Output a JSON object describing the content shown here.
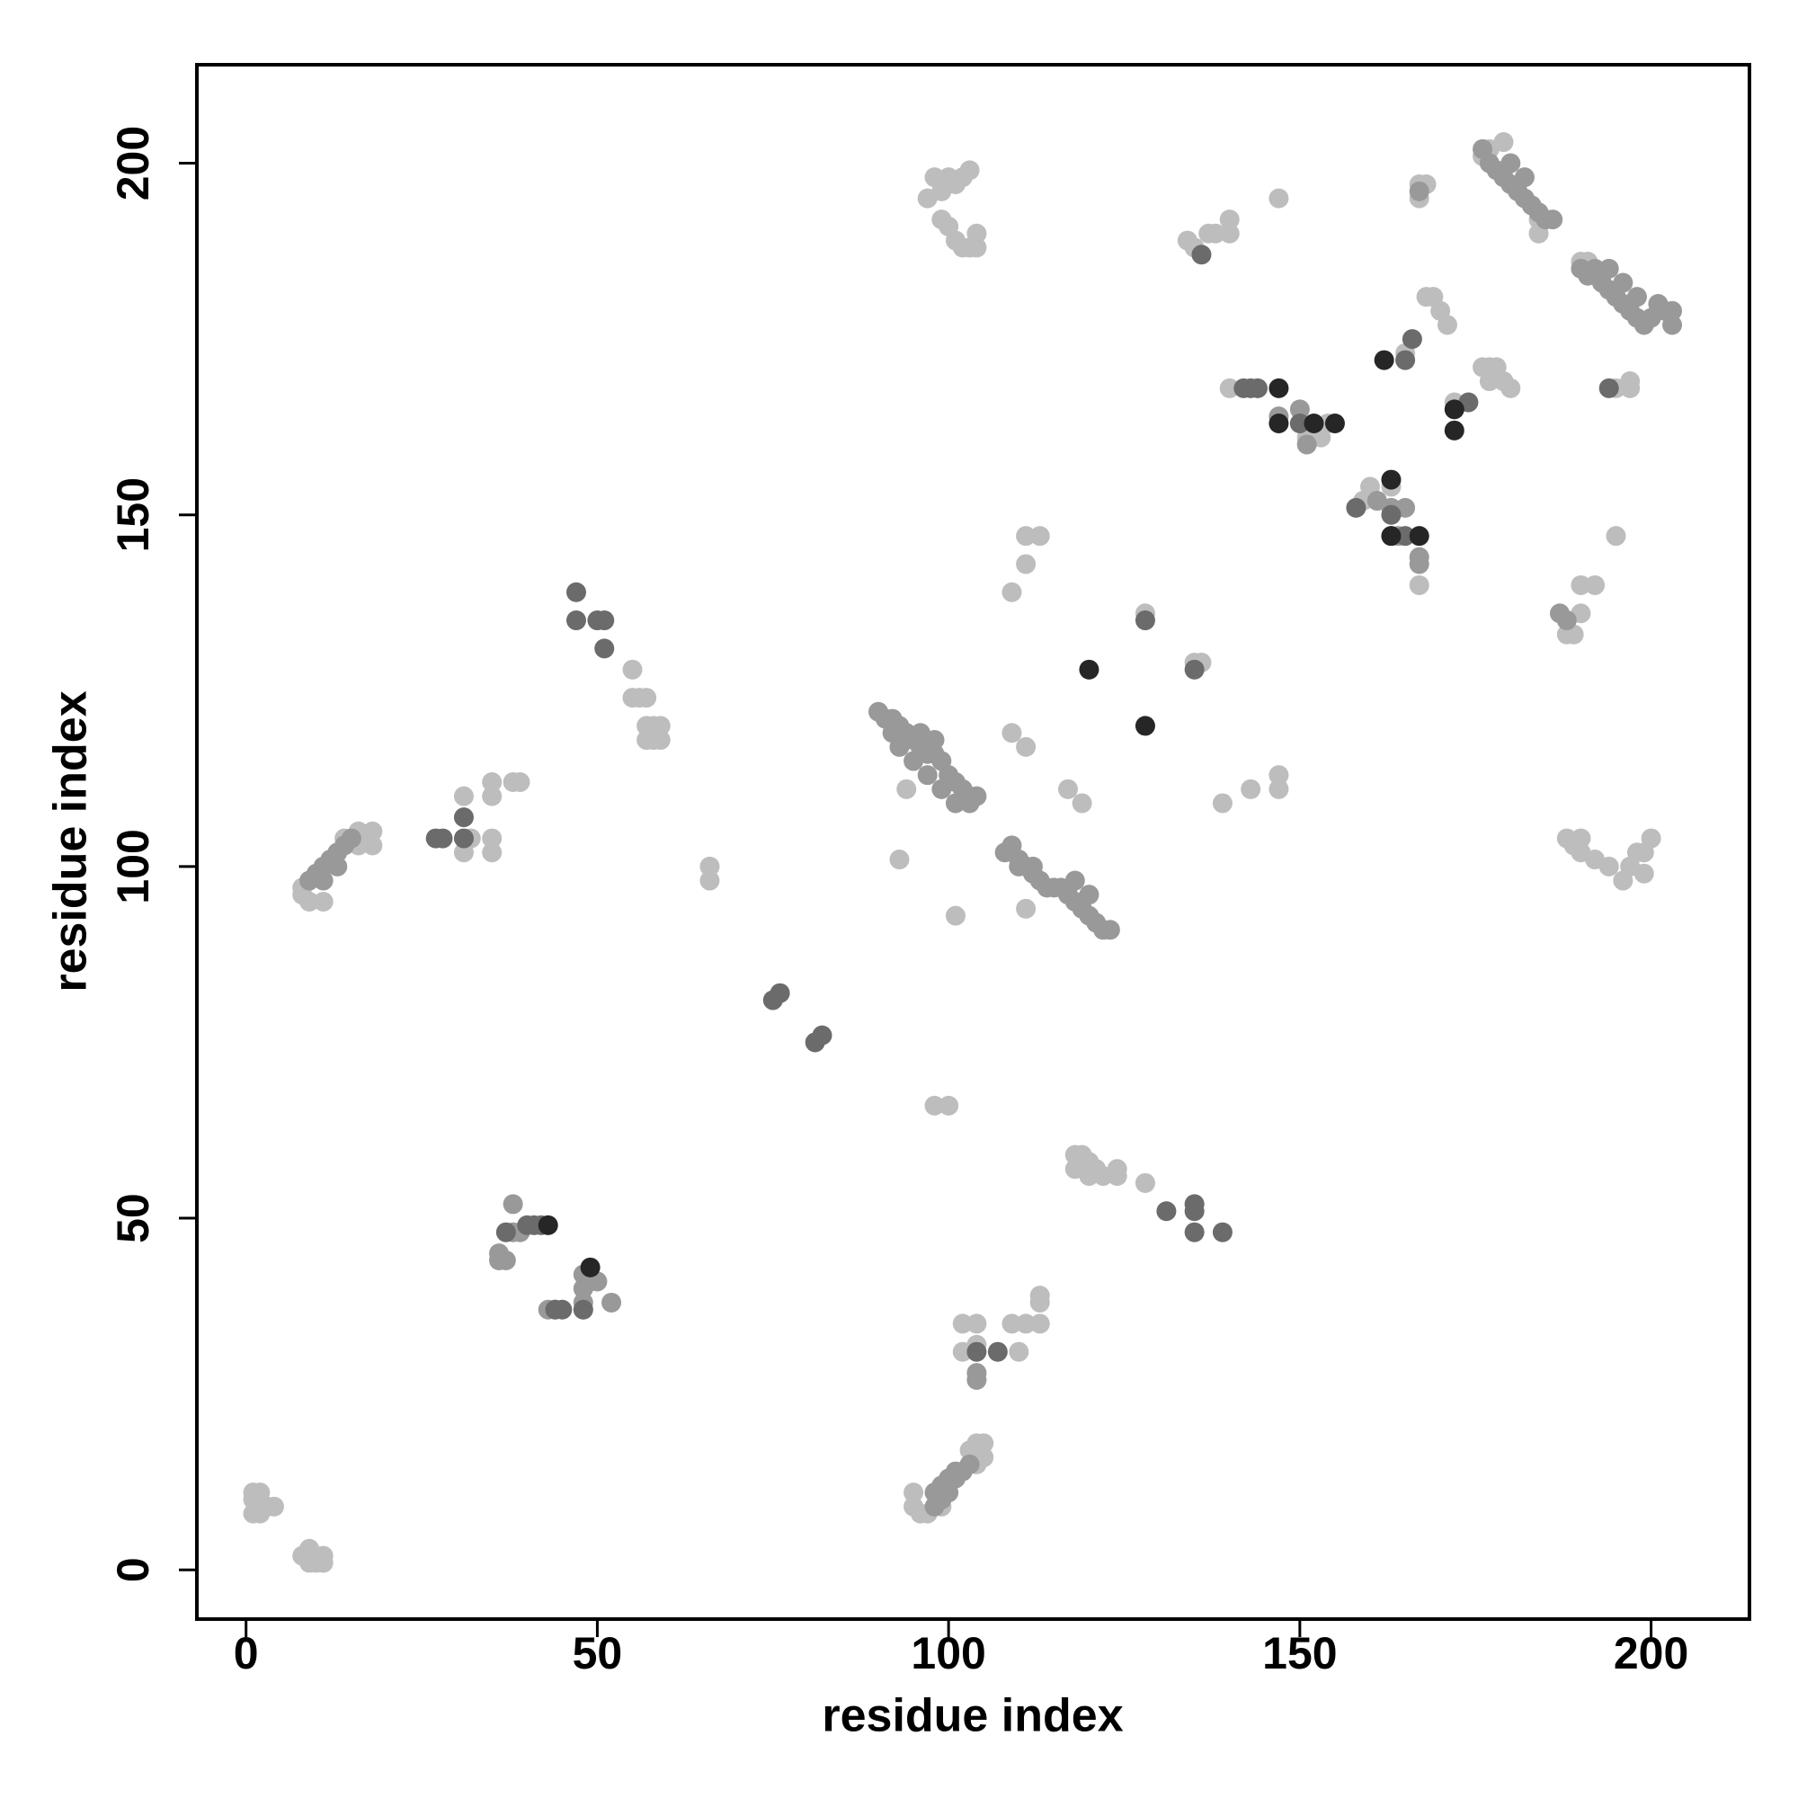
{
  "chart_data": {
    "type": "scatter",
    "x_label": "residue index",
    "y_label": "residue index",
    "xlim": [
      -7,
      214
    ],
    "ylim": [
      -7,
      214
    ],
    "xticks": [
      0,
      50,
      100,
      150,
      200
    ],
    "yticks": [
      0,
      50,
      100,
      150,
      200
    ],
    "grid": false,
    "series": [
      {
        "color": "#bdbdbd",
        "x": [
          1,
          2,
          1,
          2,
          3,
          4,
          1,
          2,
          8,
          9,
          10,
          11,
          10,
          11,
          9,
          8,
          8,
          9,
          11,
          16,
          17,
          18,
          18,
          16,
          14,
          31,
          31,
          35,
          35,
          35,
          35,
          38,
          39,
          32,
          55,
          55,
          56,
          57,
          57,
          58,
          59,
          58,
          57,
          59,
          66,
          66,
          98,
          99,
          100,
          101,
          102,
          103,
          97,
          99,
          100,
          101,
          102,
          103,
          104,
          104,
          109,
          111,
          111,
          113,
          109,
          111,
          117,
          119,
          94,
          93,
          101,
          111,
          98,
          100,
          118,
          119,
          120,
          121,
          124,
          124,
          128,
          118,
          120,
          122,
          102,
          102,
          104,
          104,
          109,
          111,
          110,
          113,
          113,
          113,
          95,
          95,
          96,
          97,
          99,
          103,
          104,
          105,
          105,
          104,
          134,
          135,
          137,
          138,
          140,
          140,
          147,
          128,
          135,
          136,
          139,
          143,
          147,
          147,
          140,
          150,
          151,
          153,
          154,
          159,
          160,
          163,
          167,
          168,
          167,
          168,
          169,
          170,
          171,
          167,
          165,
          172,
          176,
          177,
          178,
          179,
          180,
          177,
          176,
          177,
          179,
          184,
          184,
          188,
          189,
          190,
          190,
          192,
          194,
          196,
          197,
          198,
          199,
          200,
          199,
          188,
          189,
          190,
          190,
          192,
          195,
          195,
          197,
          197,
          190,
          191
        ],
        "y": [
          11,
          11,
          10,
          9,
          9,
          9,
          8,
          8,
          2,
          1,
          1,
          1,
          2,
          2,
          3,
          97,
          96,
          95,
          95,
          103,
          104,
          105,
          103,
          105,
          104,
          110,
          102,
          112,
          110,
          104,
          102,
          112,
          112,
          104,
          128,
          124,
          124,
          124,
          120,
          120,
          118,
          118,
          118,
          120,
          100,
          98,
          198,
          196,
          198,
          197,
          198,
          199,
          195,
          192,
          191,
          189,
          188,
          188,
          188,
          190,
          139,
          143,
          147,
          147,
          119,
          117,
          111,
          109,
          111,
          101,
          93,
          94,
          66,
          66,
          59,
          59,
          58,
          57,
          57,
          56,
          55,
          57,
          56,
          56,
          31,
          35,
          35,
          32,
          35,
          35,
          31,
          35,
          38,
          39,
          11,
          9,
          8,
          8,
          9,
          17,
          18,
          18,
          16,
          15,
          189,
          188,
          190,
          190,
          192,
          190,
          195,
          136,
          129,
          129,
          109,
          111,
          113,
          111,
          168,
          163,
          161,
          161,
          163,
          152,
          154,
          154,
          197,
          197,
          195,
          181,
          181,
          179,
          177,
          140,
          173,
          166,
          171,
          171,
          171,
          169,
          168,
          169,
          201,
          202,
          203,
          192,
          190,
          104,
          103,
          102,
          104,
          101,
          100,
          98,
          100,
          102,
          102,
          104,
          99,
          133,
          133,
          136,
          140,
          140,
          147,
          168,
          169,
          168,
          186,
          186
        ]
      },
      {
        "color": "#999999",
        "x": [
          9,
          10,
          11,
          12,
          13,
          14,
          15,
          13,
          11,
          38,
          39,
          38,
          36,
          37,
          36,
          48,
          49,
          48,
          50,
          52,
          43,
          44,
          48,
          48,
          90,
          91,
          92,
          93,
          94,
          95,
          96,
          97,
          98,
          99,
          100,
          101,
          102,
          103,
          104,
          96,
          98,
          92,
          93,
          95,
          97,
          99,
          101,
          103,
          108,
          109,
          110,
          111,
          112,
          113,
          114,
          115,
          116,
          117,
          118,
          119,
          120,
          121,
          122,
          123,
          118,
          120,
          112,
          110,
          98,
          99,
          100,
          101,
          102,
          103,
          99,
          100,
          101,
          98,
          104,
          104,
          176,
          177,
          178,
          179,
          180,
          181,
          182,
          183,
          184,
          185,
          186,
          180,
          182,
          190,
          191,
          192,
          193,
          194,
          195,
          196,
          197,
          198,
          199,
          200,
          201,
          202,
          203,
          203,
          194,
          196,
          198,
          167,
          167,
          165,
          163,
          164,
          161,
          151,
          150,
          147,
          167,
          188,
          187
        ],
        "y": [
          98,
          99,
          100,
          101,
          102,
          103,
          104,
          100,
          98,
          48,
          48,
          52,
          44,
          44,
          45,
          42,
          41,
          40,
          41,
          38,
          37,
          37,
          37,
          38,
          122,
          121,
          121,
          120,
          119,
          118,
          117,
          116,
          116,
          115,
          113,
          112,
          111,
          110,
          110,
          119,
          118,
          119,
          117,
          115,
          113,
          111,
          109,
          109,
          102,
          103,
          101,
          100,
          99,
          98,
          97,
          97,
          97,
          96,
          95,
          94,
          93,
          92,
          91,
          91,
          98,
          96,
          100,
          100,
          11,
          12,
          13,
          14,
          14,
          15,
          10,
          11,
          13,
          9,
          27,
          28,
          202,
          200,
          199,
          198,
          197,
          196,
          195,
          194,
          193,
          192,
          192,
          200,
          198,
          185,
          184,
          185,
          183,
          182,
          181,
          180,
          179,
          178,
          177,
          178,
          180,
          179,
          179,
          177,
          185,
          183,
          181,
          144,
          143,
          151,
          151,
          147,
          152,
          160,
          165,
          164,
          196,
          135,
          136
        ]
      },
      {
        "color": "#6b6b6b",
        "x": [
          27,
          28,
          31,
          31,
          37,
          40,
          41,
          42,
          47,
          47,
          50,
          51,
          51,
          45,
          44,
          48,
          75,
          76,
          81,
          82,
          107,
          104,
          131,
          135,
          135,
          135,
          139,
          128,
          135,
          136,
          142,
          143,
          144,
          150,
          174,
          163,
          165,
          165,
          166,
          158,
          163,
          194
        ],
        "y": [
          104,
          104,
          107,
          104,
          48,
          49,
          49,
          49,
          139,
          135,
          135,
          135,
          131,
          37,
          37,
          37,
          81,
          82,
          75,
          76,
          31,
          31,
          51,
          52,
          51,
          48,
          48,
          135,
          128,
          187,
          168,
          168,
          168,
          163,
          166,
          147,
          147,
          172,
          175,
          151,
          150,
          168
        ]
      },
      {
        "color": "#262626",
        "x": [
          43,
          49,
          120,
          128,
          147,
          147,
          155,
          163,
          167,
          162,
          172,
          172,
          152,
          163
        ],
        "y": [
          49,
          43,
          128,
          120,
          168,
          163,
          163,
          155,
          147,
          172,
          165,
          162,
          163,
          147
        ]
      }
    ]
  }
}
